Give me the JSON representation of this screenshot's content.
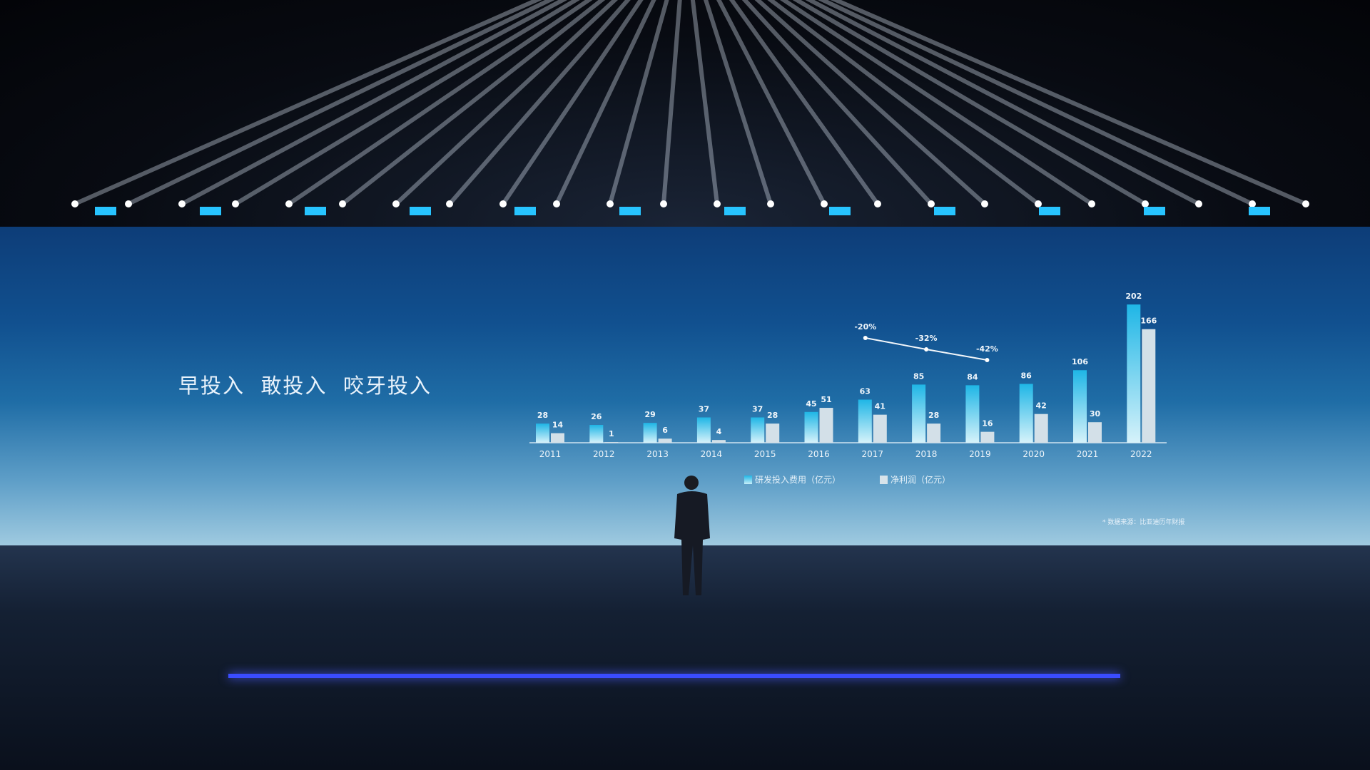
{
  "headline": "早投入  敢投入  咬牙投入",
  "footnote": "* 数据来源：比亚迪历年财报",
  "chart_data": {
    "type": "bar",
    "categories": [
      "2011",
      "2012",
      "2013",
      "2014",
      "2015",
      "2016",
      "2017",
      "2018",
      "2019",
      "2020",
      "2021",
      "2022"
    ],
    "series": [
      {
        "name": "研发投入费用（亿元）",
        "color": "#1fb6e6",
        "values": [
          28,
          26,
          29,
          37,
          37,
          45,
          63,
          85,
          84,
          86,
          106,
          202
        ]
      },
      {
        "name": "净利润（亿元）",
        "color": "#cfdde6",
        "values": [
          14,
          1,
          6,
          4,
          28,
          51,
          41,
          28,
          16,
          42,
          30,
          166
        ]
      }
    ],
    "trend": {
      "type": "line",
      "categories": [
        "2017",
        "2018",
        "2019"
      ],
      "labels": [
        "-20%",
        "-32%",
        "-42%"
      ],
      "values": [
        -20,
        -32,
        -42
      ]
    },
    "legend_position": "bottom",
    "grid": false,
    "ylim": [
      0,
      210
    ]
  }
}
